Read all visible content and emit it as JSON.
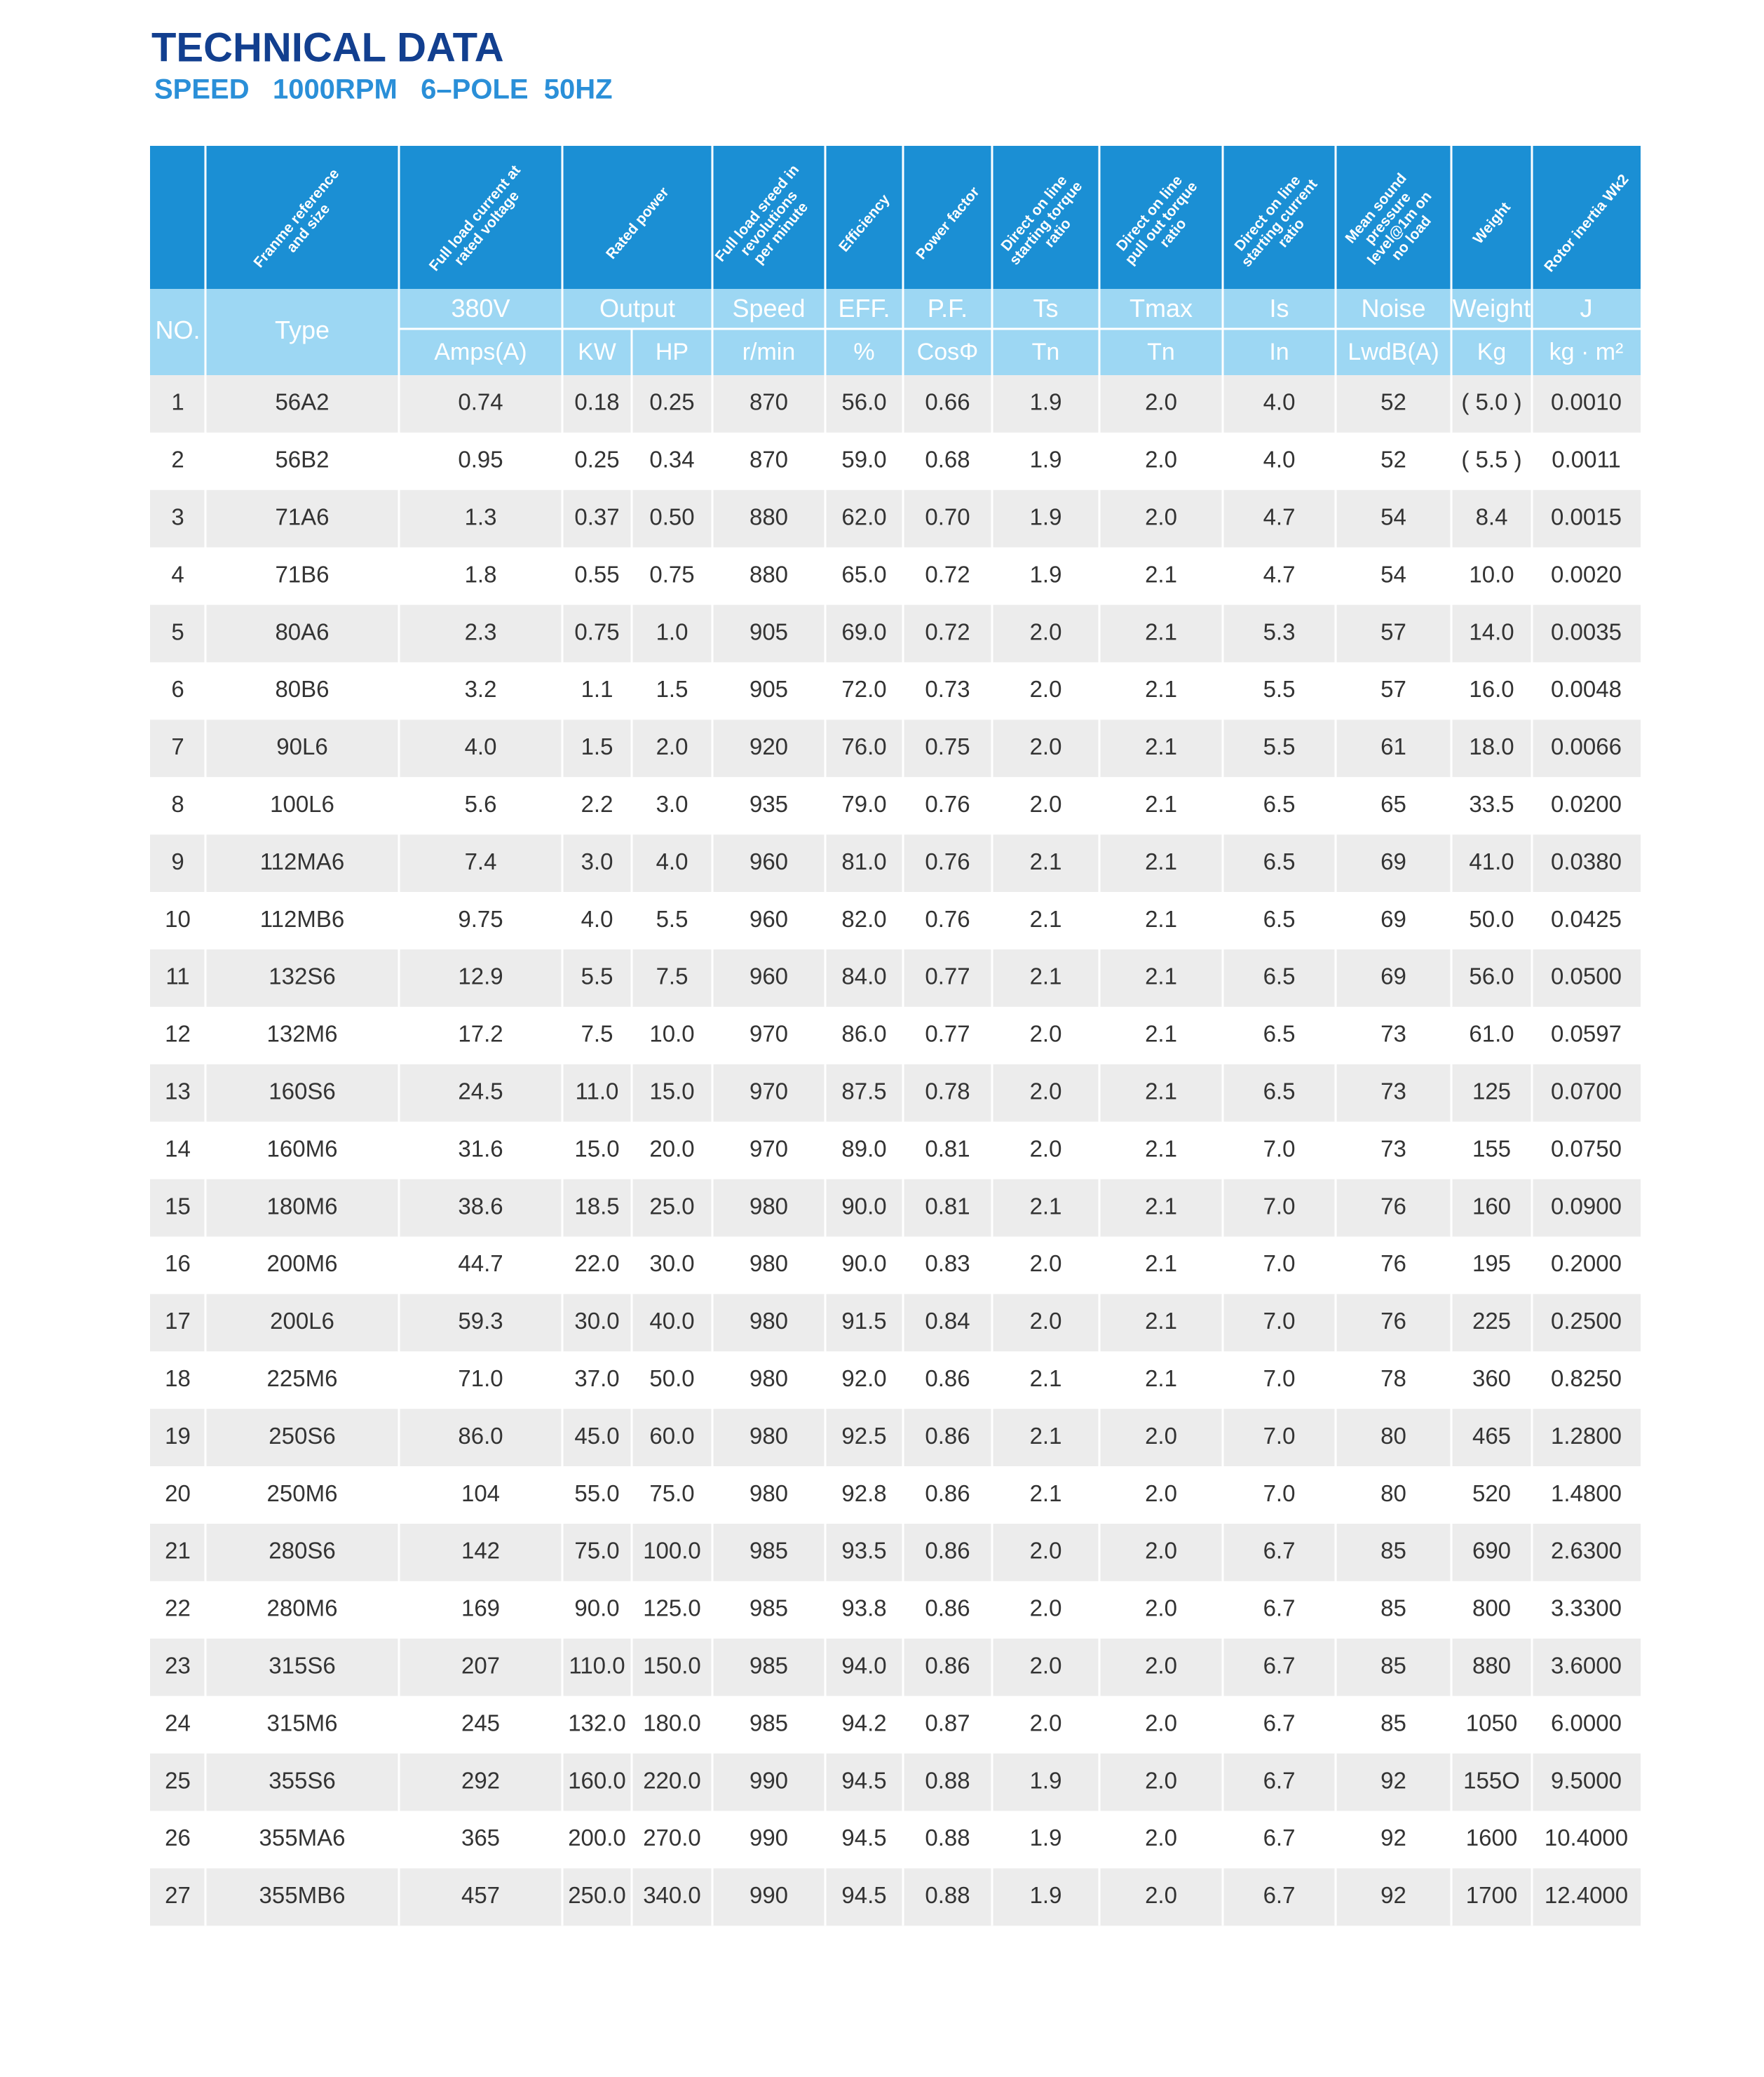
{
  "header": {
    "title": "TECHNICAL DATA",
    "subtitle": "SPEED   1000RPM   6–POLE  50HZ"
  },
  "table": {
    "header_labels": [
      [
        "Franme reference",
        "and size"
      ],
      [
        "Full load current at",
        "rated voltage"
      ],
      [
        "Rated power"
      ],
      [
        "Full load sreed in",
        "revolutions",
        "per minute"
      ],
      [
        "Efficiency"
      ],
      [
        "Power factor"
      ],
      [
        "Direct on line",
        "starting torque",
        "ratio"
      ],
      [
        "Direct on line",
        "pull out torque",
        "ratio"
      ],
      [
        "Direct on line",
        "starting current",
        "ratio"
      ],
      [
        "Mean sound",
        "pressure",
        "level@1m on",
        "no load"
      ],
      [
        "Weight"
      ],
      [
        "Rotor inertia Wk2"
      ]
    ],
    "columns": [
      "NO.",
      "Type",
      "380V",
      "Output",
      "Speed",
      "EFF.",
      "P.F.",
      "Ts",
      "Tmax",
      "Is",
      "Noise",
      "Weight",
      "J"
    ],
    "units": [
      "Amps(A)",
      "KW",
      "HP",
      "r/min",
      "%",
      "CosΦ",
      "Tn",
      "Tn",
      "In",
      "LwdB(A)",
      "Kg",
      "kg · m²"
    ],
    "rows": [
      [
        "1",
        "56A2",
        "0.74",
        "0.18",
        "0.25",
        "870",
        "56.0",
        "0.66",
        "1.9",
        "2.0",
        "4.0",
        "52",
        "( 5.0 )",
        "0.0010"
      ],
      [
        "2",
        "56B2",
        "0.95",
        "0.25",
        "0.34",
        "870",
        "59.0",
        "0.68",
        "1.9",
        "2.0",
        "4.0",
        "52",
        "( 5.5 )",
        "0.0011"
      ],
      [
        "3",
        "71A6",
        "1.3",
        "0.37",
        "0.50",
        "880",
        "62.0",
        "0.70",
        "1.9",
        "2.0",
        "4.7",
        "54",
        "8.4",
        "0.0015"
      ],
      [
        "4",
        "71B6",
        "1.8",
        "0.55",
        "0.75",
        "880",
        "65.0",
        "0.72",
        "1.9",
        "2.1",
        "4.7",
        "54",
        "10.0",
        "0.0020"
      ],
      [
        "5",
        "80A6",
        "2.3",
        "0.75",
        "1.0",
        "905",
        "69.0",
        "0.72",
        "2.0",
        "2.1",
        "5.3",
        "57",
        "14.0",
        "0.0035"
      ],
      [
        "6",
        "80B6",
        "3.2",
        "1.1",
        "1.5",
        "905",
        "72.0",
        "0.73",
        "2.0",
        "2.1",
        "5.5",
        "57",
        "16.0",
        "0.0048"
      ],
      [
        "7",
        "90L6",
        "4.0",
        "1.5",
        "2.0",
        "920",
        "76.0",
        "0.75",
        "2.0",
        "2.1",
        "5.5",
        "61",
        "18.0",
        "0.0066"
      ],
      [
        "8",
        "100L6",
        "5.6",
        "2.2",
        "3.0",
        "935",
        "79.0",
        "0.76",
        "2.0",
        "2.1",
        "6.5",
        "65",
        "33.5",
        "0.0200"
      ],
      [
        "9",
        "112MA6",
        "7.4",
        "3.0",
        "4.0",
        "960",
        "81.0",
        "0.76",
        "2.1",
        "2.1",
        "6.5",
        "69",
        "41.0",
        "0.0380"
      ],
      [
        "10",
        "112MB6",
        "9.75",
        "4.0",
        "5.5",
        "960",
        "82.0",
        "0.76",
        "2.1",
        "2.1",
        "6.5",
        "69",
        "50.0",
        "0.0425"
      ],
      [
        "11",
        "132S6",
        "12.9",
        "5.5",
        "7.5",
        "960",
        "84.0",
        "0.77",
        "2.1",
        "2.1",
        "6.5",
        "69",
        "56.0",
        "0.0500"
      ],
      [
        "12",
        "132M6",
        "17.2",
        "7.5",
        "10.0",
        "970",
        "86.0",
        "0.77",
        "2.0",
        "2.1",
        "6.5",
        "73",
        "61.0",
        "0.0597"
      ],
      [
        "13",
        "160S6",
        "24.5",
        "11.0",
        "15.0",
        "970",
        "87.5",
        "0.78",
        "2.0",
        "2.1",
        "6.5",
        "73",
        "125",
        "0.0700"
      ],
      [
        "14",
        "160M6",
        "31.6",
        "15.0",
        "20.0",
        "970",
        "89.0",
        "0.81",
        "2.0",
        "2.1",
        "7.0",
        "73",
        "155",
        "0.0750"
      ],
      [
        "15",
        "180M6",
        "38.6",
        "18.5",
        "25.0",
        "980",
        "90.0",
        "0.81",
        "2.1",
        "2.1",
        "7.0",
        "76",
        "160",
        "0.0900"
      ],
      [
        "16",
        "200M6",
        "44.7",
        "22.0",
        "30.0",
        "980",
        "90.0",
        "0.83",
        "2.0",
        "2.1",
        "7.0",
        "76",
        "195",
        "0.2000"
      ],
      [
        "17",
        "200L6",
        "59.3",
        "30.0",
        "40.0",
        "980",
        "91.5",
        "0.84",
        "2.0",
        "2.1",
        "7.0",
        "76",
        "225",
        "0.2500"
      ],
      [
        "18",
        "225M6",
        "71.0",
        "37.0",
        "50.0",
        "980",
        "92.0",
        "0.86",
        "2.1",
        "2.1",
        "7.0",
        "78",
        "360",
        "0.8250"
      ],
      [
        "19",
        "250S6",
        "86.0",
        "45.0",
        "60.0",
        "980",
        "92.5",
        "0.86",
        "2.1",
        "2.0",
        "7.0",
        "80",
        "465",
        "1.2800"
      ],
      [
        "20",
        "250M6",
        "104",
        "55.0",
        "75.0",
        "980",
        "92.8",
        "0.86",
        "2.1",
        "2.0",
        "7.0",
        "80",
        "520",
        "1.4800"
      ],
      [
        "21",
        "280S6",
        "142",
        "75.0",
        "100.0",
        "985",
        "93.5",
        "0.86",
        "2.0",
        "2.0",
        "6.7",
        "85",
        "690",
        "2.6300"
      ],
      [
        "22",
        "280M6",
        "169",
        "90.0",
        "125.0",
        "985",
        "93.8",
        "0.86",
        "2.0",
        "2.0",
        "6.7",
        "85",
        "800",
        "3.3300"
      ],
      [
        "23",
        "315S6",
        "207",
        "110.0",
        "150.0",
        "985",
        "94.0",
        "0.86",
        "2.0",
        "2.0",
        "6.7",
        "85",
        "880",
        "3.6000"
      ],
      [
        "24",
        "315M6",
        "245",
        "132.0",
        "180.0",
        "985",
        "94.2",
        "0.87",
        "2.0",
        "2.0",
        "6.7",
        "85",
        "1050",
        "6.0000"
      ],
      [
        "25",
        "355S6",
        "292",
        "160.0",
        "220.0",
        "990",
        "94.5",
        "0.88",
        "1.9",
        "2.0",
        "6.7",
        "92",
        "155O",
        "9.5000"
      ],
      [
        "26",
        "355MA6",
        "365",
        "200.0",
        "270.0",
        "990",
        "94.5",
        "0.88",
        "1.9",
        "2.0",
        "6.7",
        "92",
        "1600",
        "10.4000"
      ],
      [
        "27",
        "355MB6",
        "457",
        "250.0",
        "340.0",
        "990",
        "94.5",
        "0.88",
        "1.9",
        "2.0",
        "6.7",
        "92",
        "1700",
        "12.4000"
      ]
    ]
  }
}
